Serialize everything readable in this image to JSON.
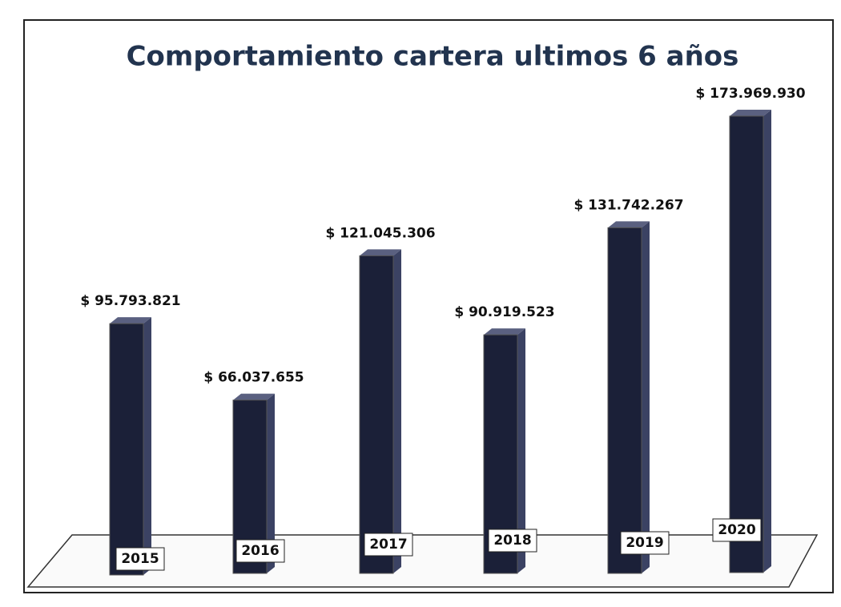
{
  "chart_data": {
    "type": "bar3d",
    "title": "Comportamiento cartera ultimos 6 años",
    "categories": [
      "2015",
      "2016",
      "2017",
      "2018",
      "2019",
      "2020"
    ],
    "values": [
      95793821,
      66037655,
      121045306,
      90919523,
      131742267,
      173969930
    ],
    "value_labels": [
      "$ 95.793.821",
      "$ 66.037.655",
      "$ 121.045.306",
      "$ 90.919.523",
      "$ 131.742.267",
      "$ 173.969.930"
    ],
    "color": "#1b2038"
  }
}
